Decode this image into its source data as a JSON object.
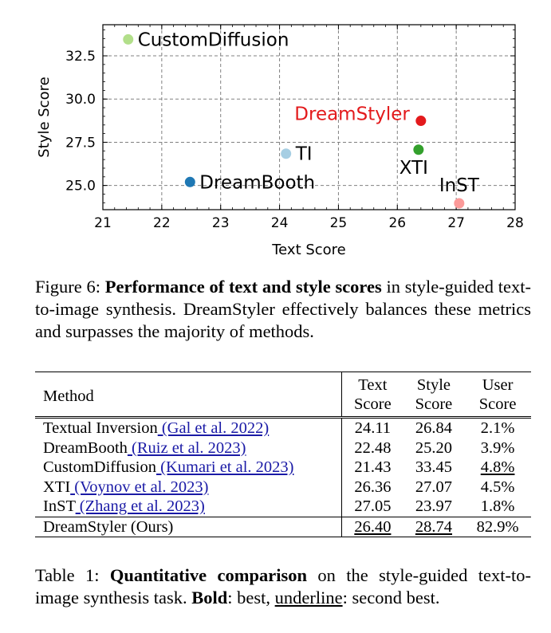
{
  "chart_data": {
    "type": "scatter",
    "xlabel": "Text Score",
    "ylabel": "Style Score",
    "xlim": [
      21,
      28
    ],
    "ylim": [
      23.6,
      34.3
    ],
    "xticks": [
      21,
      22,
      23,
      24,
      25,
      26,
      27,
      28
    ],
    "yticks": [
      25.0,
      27.5,
      30.0,
      32.5
    ],
    "grid": true,
    "points": [
      {
        "label": "Textual Inversion",
        "display_label": "TI",
        "x": 24.11,
        "y": 26.84,
        "color": "#a6cee3",
        "label_color": "#000000",
        "label_pos": "right"
      },
      {
        "label": "DreamBooth",
        "display_label": "DreamBooth",
        "x": 22.48,
        "y": 25.2,
        "color": "#1f78b4",
        "label_color": "#000000",
        "label_pos": "right"
      },
      {
        "label": "CustomDiffusion",
        "display_label": "CustomDiffusion",
        "x": 21.43,
        "y": 33.45,
        "color": "#b2df8a",
        "label_color": "#000000",
        "label_pos": "right"
      },
      {
        "label": "XTI",
        "display_label": "XTI",
        "x": 26.36,
        "y": 27.07,
        "color": "#33a02c",
        "label_color": "#000000",
        "label_pos": "below-left"
      },
      {
        "label": "InST",
        "display_label": "InST",
        "x": 27.05,
        "y": 23.97,
        "color": "#fb9a99",
        "label_color": "#000000",
        "label_pos": "above-left"
      },
      {
        "label": "DreamStyler (Ours)",
        "display_label": "DreamStyler",
        "x": 26.4,
        "y": 28.74,
        "color": "#e31a1c",
        "label_color": "#e31a1c",
        "label_pos": "left"
      }
    ]
  },
  "figure_caption": {
    "prefix": "Figure 6: ",
    "bold": "Performance of text and style scores",
    "rest": " in style-guided text-to-image synthesis. DreamStyler effectively balances these metrics and surpasses the majority of methods."
  },
  "table": {
    "headers": {
      "method": "Method",
      "text_1": "Text",
      "text_2": "Score",
      "style_1": "Style",
      "style_2": "Score",
      "user_1": "User",
      "user_2": "Score"
    },
    "rows": [
      {
        "method": "Textual Inversion",
        "cite": " (Gal et al. 2022)",
        "text": "24.11",
        "style": "26.84",
        "user": "2.1%"
      },
      {
        "method": "DreamBooth",
        "cite": " (Ruiz et al. 2023)",
        "text": "22.48",
        "style": "25.20",
        "user": "3.9%"
      },
      {
        "method": "CustomDiffusion",
        "cite": " (Kumari et al. 2023)",
        "text": "21.43",
        "style": "33.45",
        "user": "4.8%"
      },
      {
        "method": "XTI",
        "cite": " (Voynov et al. 2023)",
        "text": "26.36",
        "style": "27.07",
        "user": "4.5%"
      },
      {
        "method": "InST",
        "cite": " (Zhang et al. 2023)",
        "text": "27.05",
        "style": "23.97",
        "user": "1.8%"
      }
    ],
    "ours": {
      "method": "DreamStyler (Ours)",
      "text": "26.40",
      "style": "28.74",
      "user": "82.9%"
    }
  },
  "table_caption": {
    "prefix": "Table 1: ",
    "bold1": "Quantitative comparison",
    "mid": " on the style-guided text-to-image synthesis task. ",
    "bold2": "Bold",
    "mid2": ": best, ",
    "underline": "underline",
    "end": ": second best."
  }
}
